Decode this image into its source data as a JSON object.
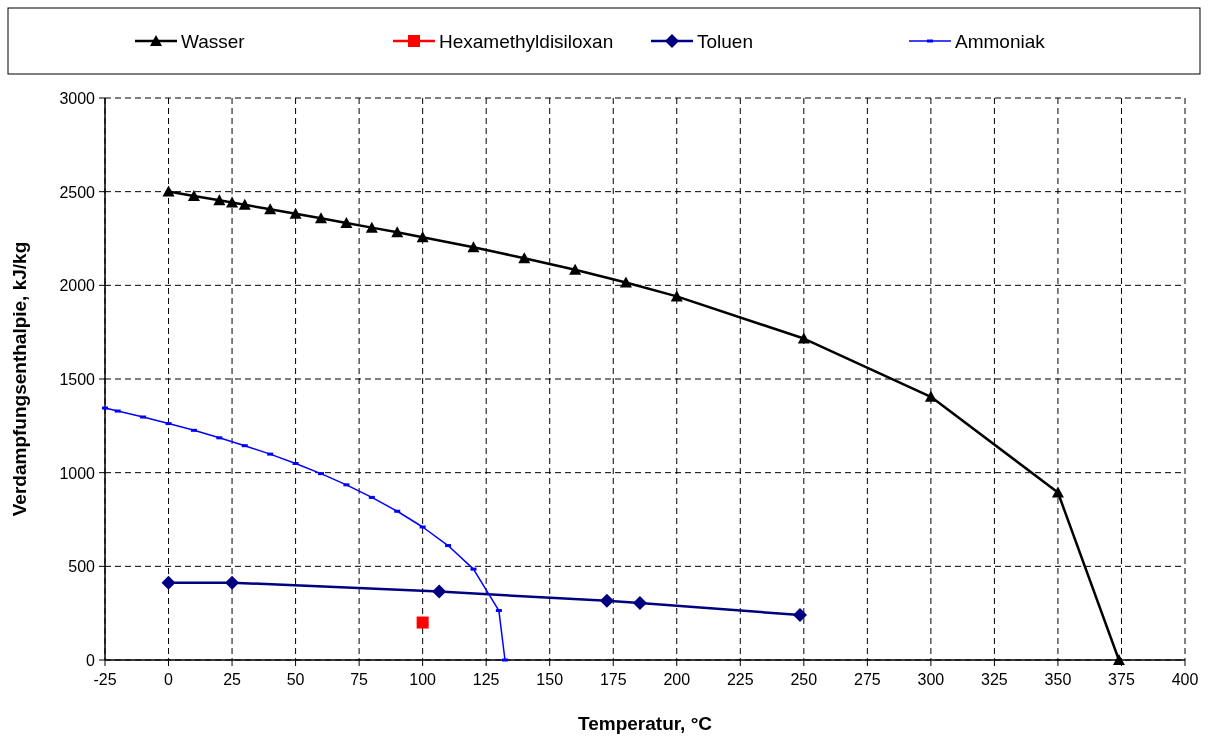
{
  "chart_data": {
    "type": "line",
    "xlabel": "Temperatur, °C",
    "ylabel": "Verdampfungsenthalpie, kJ/kg",
    "xlim": [
      -25,
      400
    ],
    "ylim": [
      0,
      3000
    ],
    "xticks": [
      -25,
      0,
      25,
      50,
      75,
      100,
      125,
      150,
      175,
      200,
      225,
      250,
      275,
      300,
      325,
      350,
      375,
      400
    ],
    "yticks": [
      0,
      500,
      1000,
      1500,
      2000,
      2500,
      3000
    ],
    "grid": true,
    "legend": "top",
    "series": [
      {
        "name": "Wasser",
        "color": "#000000",
        "marker": "triangle",
        "x": [
          0,
          10,
          20,
          25,
          30,
          40,
          50,
          60,
          70,
          80,
          90,
          100,
          120,
          140,
          160,
          180,
          200,
          250,
          300,
          350,
          374
        ],
        "values": [
          2501,
          2477,
          2454,
          2442,
          2430,
          2406,
          2382,
          2358,
          2333,
          2308,
          2283,
          2257,
          2203,
          2145,
          2083,
          2015,
          1941,
          1716,
          1405,
          894,
          0
        ]
      },
      {
        "name": "Hexamethyldisiloxan",
        "color": "#ff0000",
        "marker": "square",
        "x": [
          100
        ],
        "values": [
          200
        ]
      },
      {
        "name": "Toluen",
        "color": "#000080",
        "marker": "diamond",
        "x": [
          0,
          25,
          106.5,
          172.5,
          185.5,
          248.5
        ],
        "values": [
          412,
          413,
          365,
          316,
          304,
          240
        ]
      },
      {
        "name": "Ammoniak",
        "color": "#0000ff",
        "marker": "square",
        "x": [
          -25,
          -20,
          -10,
          0,
          10,
          20,
          30,
          40,
          50,
          60,
          70,
          80,
          90,
          100,
          110,
          120,
          130,
          132.4
        ],
        "values": [
          1345,
          1329,
          1297,
          1262,
          1226,
          1186,
          1144,
          1099,
          1049,
          995,
          935,
          868,
          794,
          710,
          611,
          485,
          264,
          0
        ]
      }
    ]
  }
}
